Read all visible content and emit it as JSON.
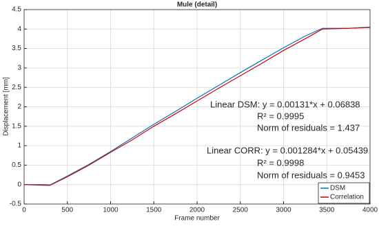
{
  "chart_data": {
    "type": "line",
    "title": "Mule (detail)",
    "x_label": "Frame number",
    "y_label": "Displacement [mm]",
    "x": [
      0,
      250,
      300,
      500,
      750,
      1000,
      1250,
      1500,
      1750,
      2000,
      2250,
      2500,
      2750,
      3000,
      3250,
      3450,
      3750,
      4000
    ],
    "series": [
      {
        "name": "DSM",
        "color": "#0072bd",
        "values": [
          0,
          0,
          -0.01,
          0.22,
          0.52,
          0.85,
          1.2,
          1.55,
          1.88,
          2.22,
          2.55,
          2.88,
          3.2,
          3.52,
          3.82,
          4.02,
          4.02,
          4.05
        ]
      },
      {
        "name": "Correlation",
        "color": "#d00000",
        "values": [
          0,
          -0.02,
          -0.02,
          0.2,
          0.5,
          0.83,
          1.15,
          1.5,
          1.82,
          2.15,
          2.48,
          2.8,
          3.12,
          3.45,
          3.75,
          4.0,
          4.02,
          4.04
        ]
      }
    ],
    "xlim": [
      0,
      4000
    ],
    "xticks": [
      0,
      500,
      1000,
      1500,
      2000,
      2500,
      3000,
      3500,
      4000
    ],
    "ylim": [
      -0.5,
      4.5
    ],
    "yticks": [
      -0.5,
      0,
      0.5,
      1,
      1.5,
      2,
      2.5,
      3,
      3.5,
      4,
      4.5
    ],
    "grid": true,
    "legend": "lower right",
    "annotations": [
      {
        "text": "Linear DSM:  y = 0.00131*x + 0.06838",
        "color": "#1f78c8"
      },
      {
        "text": "R² = 0.9995",
        "color": "#1f78c8"
      },
      {
        "text": "Norm of residuals = 1.437",
        "color": "#1f78c8"
      },
      {
        "text": "Linear CORR:  y = 0.001284*x + 0.05439",
        "color": "#e00000"
      },
      {
        "text": "R² = 0.9998",
        "color": "#e00000"
      },
      {
        "text": "Norm of residuals = 0.9453",
        "color": "#e00000"
      }
    ]
  }
}
